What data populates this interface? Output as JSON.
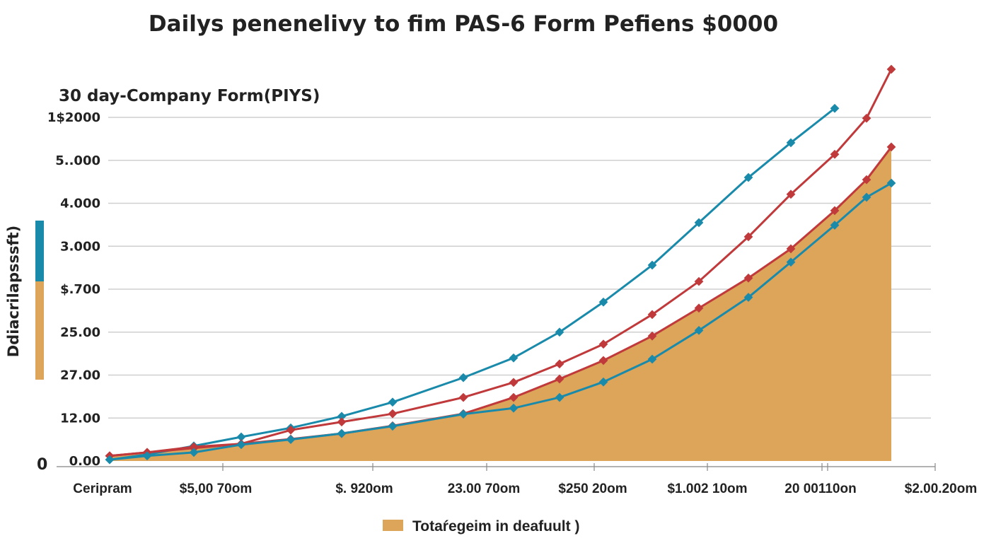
{
  "chart_data": {
    "type": "line",
    "title": "Dailys penenelivy to fim PAS-6 Form Pefiens $0000",
    "subtitle": "30 day-Company Form(PIYS)",
    "ylabel": "Ddiacrilapsssft)",
    "y_origin_label": "0",
    "ytick_labels": [
      "0.00",
      "12.00",
      "27.00",
      "25.00",
      "$.700",
      "3.000",
      "4.000",
      "5..000",
      "1$2000"
    ],
    "xtick_labels": [
      "Ceripram",
      "$5,00 70om",
      "$.  920om",
      "23.00 70om",
      "$250 20om",
      "$1.002 10om",
      "20 00110on",
      "$2.00.20om"
    ],
    "ylim": [
      0,
      8
    ],
    "grid": true,
    "legend_position": "bottom",
    "legend": [
      {
        "label": "Totaŕegeim in deafuult )",
        "color": "#dca55a"
      }
    ],
    "colors": {
      "teal": "#1a8aab",
      "red": "#c0393b",
      "area": "#dca55a"
    },
    "series": [
      {
        "color": "#dca55a",
        "kind": "area",
        "values": [
          0.12,
          0.2,
          0.33,
          0.4,
          0.51,
          0.64,
          0.82,
          1.1,
          1.48,
          1.91,
          2.34,
          2.91,
          3.56,
          4.26,
          4.94,
          5.83,
          6.55,
          7.31
        ]
      },
      {
        "color": "#1a8aab",
        "kind": "line",
        "values": [
          0.03,
          0.15,
          0.35,
          0.56,
          0.77,
          1.04,
          1.37,
          1.94,
          2.4,
          3.0,
          3.7,
          4.56,
          5.55,
          6.6,
          7.41,
          8.21
        ]
      },
      {
        "color": "#c0393b",
        "kind": "line",
        "values": [
          0.12,
          0.2,
          0.3,
          0.4,
          0.72,
          0.91,
          1.1,
          1.48,
          1.83,
          2.26,
          2.72,
          3.41,
          4.18,
          5.22,
          6.21,
          7.14,
          7.98,
          9.12
        ]
      },
      {
        "color": "#c0393b",
        "kind": "line",
        "values": [
          0.12,
          0.2,
          0.33,
          0.4,
          0.51,
          0.64,
          0.82,
          1.1,
          1.48,
          1.91,
          2.34,
          2.91,
          3.56,
          4.26,
          4.94,
          5.83,
          6.55,
          7.31
        ]
      },
      {
        "color": "#1a8aab",
        "kind": "line",
        "values": [
          0.03,
          0.12,
          0.2,
          0.38,
          0.5,
          0.64,
          0.81,
          1.09,
          1.23,
          1.48,
          1.84,
          2.37,
          3.04,
          3.81,
          4.63,
          5.49,
          6.14,
          6.47
        ]
      }
    ]
  }
}
